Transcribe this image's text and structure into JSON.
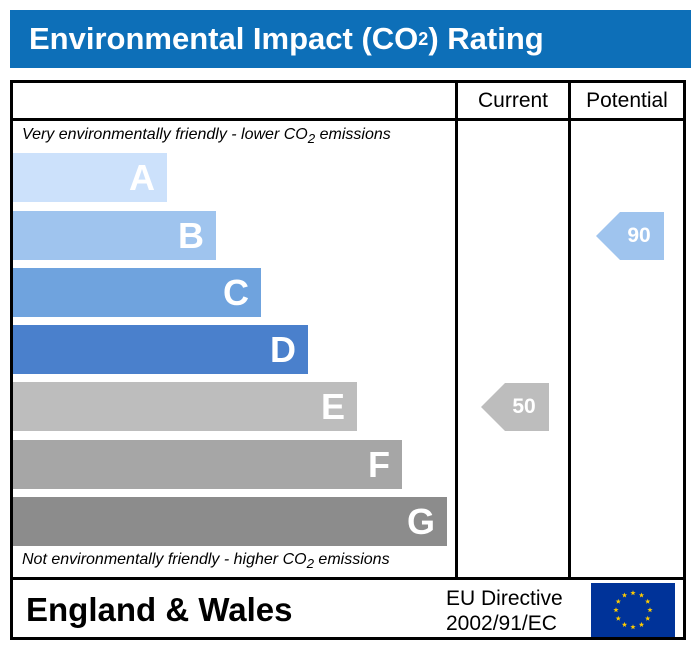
{
  "title": {
    "main": "Environmental Impact (CO",
    "sub": "2",
    "tail": ") Rating"
  },
  "columns": {
    "current": "Current",
    "potential": "Potential"
  },
  "captions": {
    "top_pre": "Very environmentally friendly - lower CO",
    "top_sub": "2",
    "top_post": " emissions",
    "bottom_pre": "Not environmentally friendly - higher CO",
    "bottom_sub": "2",
    "bottom_post": " emissions"
  },
  "chart_data": {
    "type": "bar",
    "categories": [
      "A",
      "B",
      "C",
      "D",
      "E",
      "F",
      "G"
    ],
    "band_colors": [
      "#cce1fb",
      "#9fc4ee",
      "#6fa3de",
      "#4a80cc",
      "#bdbdbd",
      "#a6a6a6",
      "#8c8c8c"
    ],
    "current": {
      "value": 50,
      "band": "E",
      "color": "#bdbdbd"
    },
    "potential": {
      "value": 90,
      "band": "B",
      "color": "#9fc4ee"
    }
  },
  "footer": {
    "region": "England & Wales",
    "directive_line1": "EU Directive",
    "directive_line2": "2002/91/EC"
  },
  "flag": {
    "background": "#003399",
    "star_color": "#ffcc00"
  }
}
